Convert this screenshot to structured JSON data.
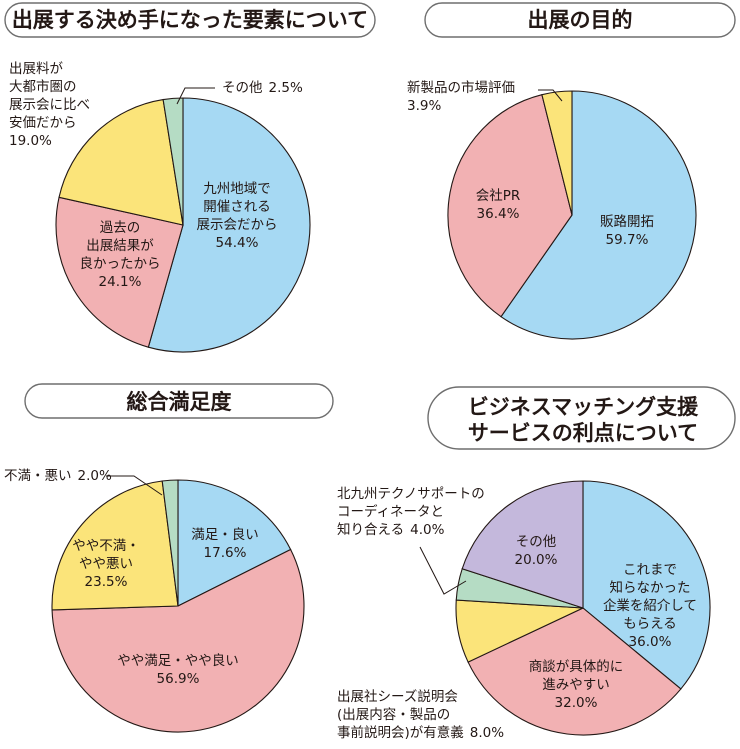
{
  "colors": {
    "blue": "#a6d9f3",
    "pink": "#f2b1b3",
    "yellow": "#fbe47a",
    "green": "#b5dcc4",
    "purple": "#c4b8dc"
  },
  "chart_data": [
    {
      "type": "pie",
      "title": "出展する決め手になった要素について",
      "slices": [
        {
          "label": "九州地域で開催される展示会だから",
          "label_lines": [
            "九州地域で",
            "開催される",
            "展示会だから"
          ],
          "value": 54.4,
          "value_label": "54.4%",
          "color": "#a6d9f3"
        },
        {
          "label": "過去の出展結果が良かったから",
          "label_lines": [
            "過去の",
            "出展結果が",
            "良かったから"
          ],
          "value": 24.1,
          "value_label": "24.1%",
          "color": "#f2b1b3"
        },
        {
          "label": "出展料が大都市圏の展示会に比べ安価だから",
          "label_lines": [
            "出展料が",
            "大都市圏の",
            "展示会に比べ",
            "安価だから"
          ],
          "value": 19.0,
          "value_label": "19.0%",
          "color": "#fbe47a"
        },
        {
          "label": "その他",
          "label_lines": [
            "その他"
          ],
          "value": 2.5,
          "value_label": "2.5%",
          "color": "#b5dcc4"
        }
      ]
    },
    {
      "type": "pie",
      "title": "出展の目的",
      "slices": [
        {
          "label": "販路開拓",
          "label_lines": [
            "販路開拓"
          ],
          "value": 59.7,
          "value_label": "59.7%",
          "color": "#a6d9f3"
        },
        {
          "label": "会社PR",
          "label_lines": [
            "会社PR"
          ],
          "value": 36.4,
          "value_label": "36.4%",
          "color": "#f2b1b3"
        },
        {
          "label": "新製品の市場評価",
          "label_lines": [
            "新製品の市場評価"
          ],
          "value": 3.9,
          "value_label": "3.9%",
          "color": "#fbe47a"
        }
      ]
    },
    {
      "type": "pie",
      "title": "総合満足度",
      "slices": [
        {
          "label": "満足・良い",
          "label_lines": [
            "満足・良い"
          ],
          "value": 17.6,
          "value_label": "17.6%",
          "color": "#a6d9f3"
        },
        {
          "label": "やや満足・やや良い",
          "label_lines": [
            "やや満足・やや良い"
          ],
          "value": 56.9,
          "value_label": "56.9%",
          "color": "#f2b1b3"
        },
        {
          "label": "やや不満・やや悪い",
          "label_lines": [
            "やや不満・",
            "やや悪い"
          ],
          "value": 23.5,
          "value_label": "23.5%",
          "color": "#fbe47a"
        },
        {
          "label": "不満・悪い",
          "label_lines": [
            "不満・悪い"
          ],
          "value": 2.0,
          "value_label": "2.0%",
          "color": "#b5dcc4"
        }
      ]
    },
    {
      "type": "pie",
      "title": "ビジネスマッチング支援サービスの利点について",
      "title_lines": [
        "ビジネスマッチング支援",
        "サービスの利点について"
      ],
      "slices": [
        {
          "label": "これまで知らなかった企業を紹介してもらえる",
          "label_lines": [
            "これまで",
            "知らなかった",
            "企業を紹介して",
            "もらえる"
          ],
          "value": 36.0,
          "value_label": "36.0%",
          "color": "#a6d9f3"
        },
        {
          "label": "商談が具体的に進みやすい",
          "label_lines": [
            "商談が具体的に",
            "進みやすい"
          ],
          "value": 32.0,
          "value_label": "32.0%",
          "color": "#f2b1b3"
        },
        {
          "label": "出展社シーズ説明会(出展内容・製品の事前説明会)が有意義",
          "label_lines": [
            "出展社シーズ説明会",
            "(出展内容・製品の",
            "事前説明会)が有意義"
          ],
          "value": 8.0,
          "value_label": "8.0%",
          "color": "#fbe47a"
        },
        {
          "label": "北九州テクノサポートのコーディネータと知り合える",
          "label_lines": [
            "北九州テクノサポートの",
            "コーディネータと",
            "知り合える"
          ],
          "value": 4.0,
          "value_label": "4.0%",
          "color": "#b5dcc4"
        },
        {
          "label": "その他",
          "label_lines": [
            "その他"
          ],
          "value": 20.0,
          "value_label": "20.0%",
          "color": "#c4b8dc"
        }
      ]
    }
  ]
}
